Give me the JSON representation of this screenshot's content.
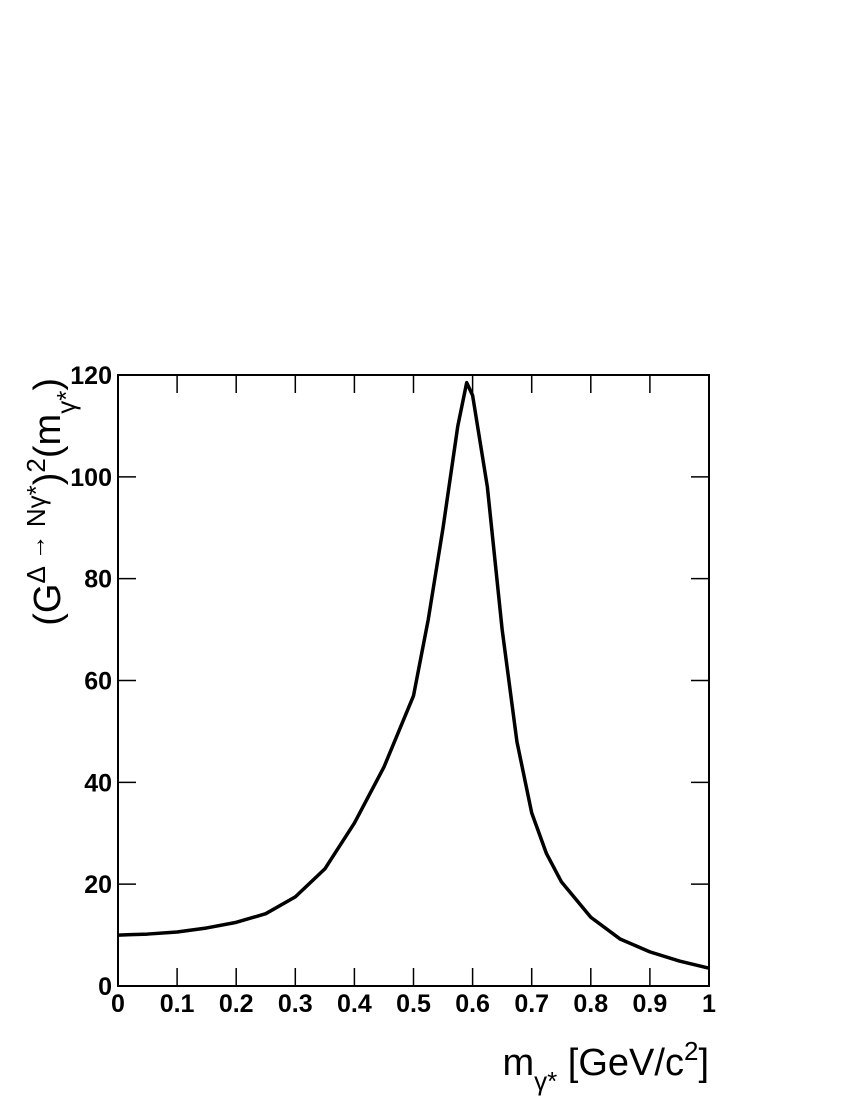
{
  "chart_data": {
    "type": "line",
    "x_label": [
      {
        "text": "m"
      },
      {
        "text": "γ*",
        "shift": "sub"
      },
      {
        "text": " [GeV/c"
      },
      {
        "text": "2",
        "shift": "super"
      },
      {
        "text": "]"
      }
    ],
    "y_label": [
      {
        "text": "(G"
      },
      {
        "text": "Δ → Nγ*",
        "shift": "super"
      },
      {
        "text": ")"
      },
      {
        "text": "2",
        "shift": "super"
      },
      {
        "text": "(m"
      },
      {
        "text": "γ*",
        "shift": "sub"
      },
      {
        "text": ")"
      }
    ],
    "x": [
      0,
      0.05,
      0.1,
      0.15,
      0.2,
      0.25,
      0.3,
      0.35,
      0.4,
      0.45,
      0.5,
      0.525,
      0.55,
      0.575,
      0.59,
      0.6,
      0.625,
      0.65,
      0.675,
      0.7,
      0.725,
      0.75,
      0.8,
      0.85,
      0.9,
      0.95,
      1
    ],
    "y": [
      10,
      10.2,
      10.6,
      11.4,
      12.5,
      14.2,
      17.5,
      23,
      32,
      43,
      57,
      72,
      90,
      110,
      118.5,
      116,
      98,
      70,
      48,
      34,
      26,
      20.5,
      13.5,
      9.2,
      6.7,
      4.9,
      3.5
    ],
    "color": "#000000",
    "xlim": [
      0,
      1
    ],
    "xticks": [
      0,
      0.1,
      0.2,
      0.3,
      0.4,
      0.5,
      0.6,
      0.7,
      0.8,
      0.9,
      1
    ],
    "ylim": [
      0,
      120
    ],
    "yticks": [
      0,
      20,
      40,
      60,
      80,
      100,
      120
    ]
  }
}
